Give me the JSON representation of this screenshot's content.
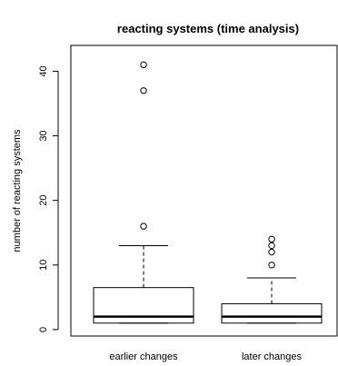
{
  "chart_data": {
    "type": "boxplot",
    "title": "reacting systems (time analysis)",
    "ylabel": "number of reacting systems",
    "xlabel": "",
    "ylim": [
      -1,
      44
    ],
    "yticks": [
      0,
      10,
      20,
      30,
      40
    ],
    "categories": [
      "earlier changes",
      "later changes"
    ],
    "boxes": [
      {
        "name": "earlier changes",
        "whisker_low": 1,
        "q1": 1,
        "median": 2,
        "q3": 6.5,
        "whisker_high": 13,
        "outliers": [
          16,
          37,
          41
        ]
      },
      {
        "name": "later changes",
        "whisker_low": 1,
        "q1": 1,
        "median": 2,
        "q3": 4,
        "whisker_high": 8,
        "outliers": [
          10,
          12,
          13,
          14
        ]
      }
    ],
    "grid": false,
    "legend": "none"
  }
}
